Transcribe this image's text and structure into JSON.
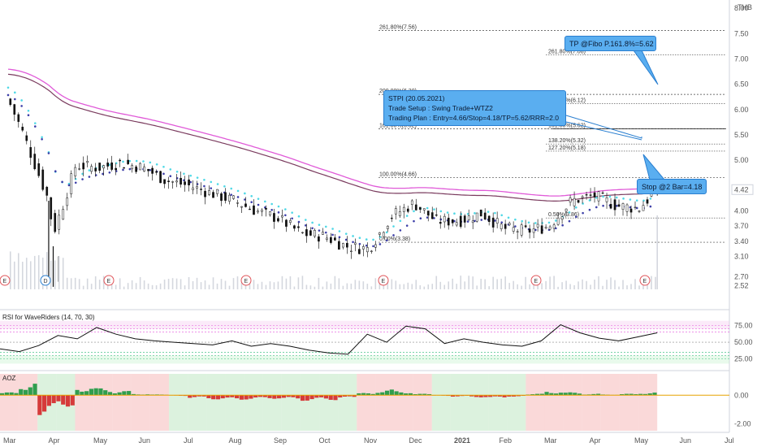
{
  "chart_data": [
    {
      "type": "candlestick",
      "symbol_currency": "THB",
      "x_tick_labels": [
        "Mar",
        "Apr",
        "May",
        "Jun",
        "Jul",
        "Aug",
        "Sep",
        "Oct",
        "Nov",
        "Dec",
        "2021",
        "Feb",
        "Mar",
        "Apr",
        "May",
        "Jun",
        "Jul"
      ],
      "y_tick_labels": [
        "8.00",
        "7.50",
        "7.00",
        "6.50",
        "6.00",
        "5.50",
        "5.00",
        "4.42",
        "4.00",
        "3.70",
        "3.40",
        "3.10",
        "2.70",
        "2.52"
      ],
      "ylim": [
        2.45,
        8.1
      ],
      "last_price": 4.42,
      "fibonacci_left": [
        {
          "label": "261.80%(7.56)",
          "value": 7.56
        },
        {
          "label": "200.00%(6.30)",
          "value": 6.3
        },
        {
          "label": "161.80%(5.62)",
          "value": 5.62
        },
        {
          "label": "100.00%(4.66)",
          "value": 4.66
        },
        {
          "label": "0.00%(3.38)",
          "value": 3.38
        }
      ],
      "fibonacci_right": [
        {
          "label": "261.80%(7.08)",
          "value": 7.08
        },
        {
          "label": "200.00%(6.12)",
          "value": 6.12
        },
        {
          "label": "161.80%(5.62)",
          "value": 5.62
        },
        {
          "label": "138.20%(5.32)",
          "value": 5.32
        },
        {
          "label": "127.20%(5.18)",
          "value": 5.18
        },
        {
          "label": "0.50%(3.86)",
          "value": 3.86
        }
      ],
      "price_series": [
        {
          "x": 0,
          "y": 6.2
        },
        {
          "x": 0.3,
          "y": 5.6
        },
        {
          "x": 0.6,
          "y": 4.9
        },
        {
          "x": 0.9,
          "y": 4.2
        },
        {
          "x": 1.0,
          "y": 3.55
        },
        {
          "x": 1.25,
          "y": 4.2
        },
        {
          "x": 1.5,
          "y": 4.9
        },
        {
          "x": 2.0,
          "y": 4.85
        },
        {
          "x": 2.5,
          "y": 4.95
        },
        {
          "x": 3.0,
          "y": 4.85
        },
        {
          "x": 3.5,
          "y": 4.6
        },
        {
          "x": 4.0,
          "y": 4.5
        },
        {
          "x": 4.5,
          "y": 4.35
        },
        {
          "x": 5.0,
          "y": 4.2
        },
        {
          "x": 5.5,
          "y": 4.0
        },
        {
          "x": 6.0,
          "y": 3.85
        },
        {
          "x": 6.5,
          "y": 3.55
        },
        {
          "x": 7.0,
          "y": 3.5
        },
        {
          "x": 7.5,
          "y": 3.3
        },
        {
          "x": 8.0,
          "y": 3.25
        },
        {
          "x": 8.5,
          "y": 3.9
        },
        {
          "x": 9.0,
          "y": 4.15
        },
        {
          "x": 9.5,
          "y": 3.8
        },
        {
          "x": 10.0,
          "y": 3.8
        },
        {
          "x": 10.5,
          "y": 3.95
        },
        {
          "x": 11.0,
          "y": 3.65
        },
        {
          "x": 11.5,
          "y": 3.6
        },
        {
          "x": 12.0,
          "y": 3.7
        },
        {
          "x": 12.5,
          "y": 4.2
        },
        {
          "x": 13.0,
          "y": 4.3
        },
        {
          "x": 13.5,
          "y": 4.1
        },
        {
          "x": 14.0,
          "y": 4.05
        },
        {
          "x": 14.4,
          "y": 4.42
        }
      ],
      "annotations": [
        {
          "name": "trade-setup",
          "lines": [
            "STPI (20.05.2021)",
            "Trade Setup : Swing Trade+WTZ2",
            "Trading Plan : Entry=4.66/Stop=4.18/TP=5.62/RRR=2.0"
          ]
        },
        {
          "name": "take-profit",
          "text": "TP @Fibo P.161.8%=5.62"
        },
        {
          "name": "stop-loss",
          "text": "Stop @2 Bar=4.18"
        }
      ],
      "event_markers": [
        "E",
        "D",
        "E",
        "E",
        "E",
        "E",
        "E",
        "E"
      ]
    },
    {
      "type": "line",
      "title": "RSI for WaveRiders (14, 70, 30)",
      "y_tick_labels": [
        "75.00",
        "50.00",
        "25.00"
      ],
      "ylim": [
        10,
        95
      ],
      "series": [
        {
          "values": [
            40,
            36,
            45,
            60,
            55,
            72,
            62,
            55,
            52,
            50,
            48,
            46,
            52,
            44,
            48,
            44,
            38,
            34,
            32,
            62,
            50,
            74,
            70,
            48,
            55,
            50,
            46,
            44,
            52,
            76,
            64,
            56,
            52,
            58,
            64
          ]
        }
      ]
    },
    {
      "type": "bar",
      "title": "AOZ",
      "y_tick_labels": [
        "0.00",
        "-2.00"
      ],
      "ylim": [
        -2.5,
        1.5
      ],
      "values": [
        0.2,
        0.9,
        -1.4,
        -0.8,
        0.6,
        0.5,
        0.3,
        0.1,
        0.05,
        -0.05,
        -0.2,
        -0.3,
        -0.35,
        -0.3,
        -0.25,
        -0.3,
        -0.4,
        -0.35,
        -0.2,
        0.15,
        0.4,
        0.3,
        0.1,
        -0.05,
        -0.1,
        -0.15,
        -0.2,
        -0.1,
        0.1,
        0.3,
        0.2,
        0.1,
        0.05,
        0.1,
        0.2
      ]
    }
  ]
}
